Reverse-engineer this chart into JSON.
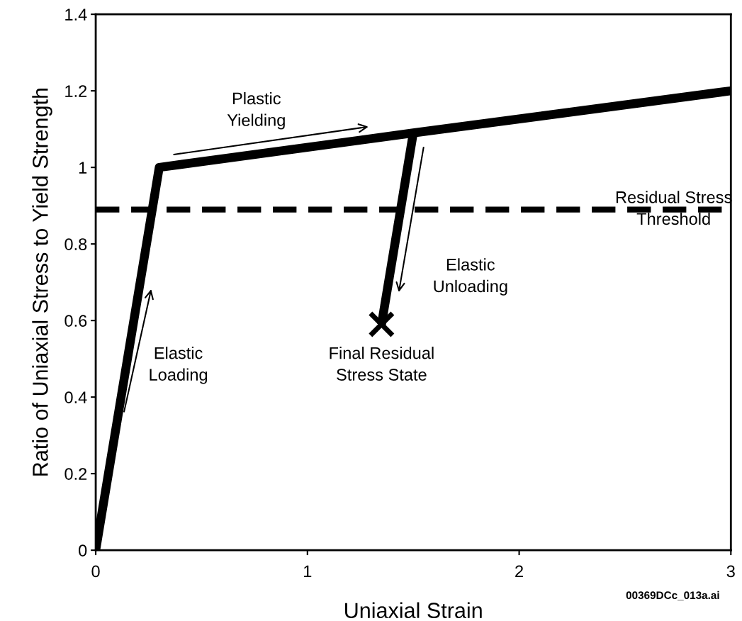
{
  "chart_data": {
    "type": "line",
    "xlabel": "Uniaxial Strain",
    "ylabel": "Ratio of Uniaxial Stress to Yield Strength",
    "series": [
      {
        "color": "#000000",
        "x": [
          0,
          0.3,
          1.5,
          3
        ],
        "values": [
          0,
          1.0,
          1.09,
          1.2
        ]
      },
      {
        "color": "#000000",
        "x": [
          1.5,
          1.35
        ],
        "values": [
          1.09,
          0.59
        ]
      },
      {
        "type": "scatter",
        "marker": "cross",
        "color": "#000000",
        "x": [
          1.35
        ],
        "values": [
          0.59
        ]
      }
    ],
    "xlim": [
      0,
      3
    ],
    "xticks": [
      0,
      1,
      2,
      3
    ],
    "ylim": [
      0,
      1.4
    ],
    "yticks": [
      0,
      0.2,
      0.4,
      0.6,
      0.8,
      1,
      1.2,
      1.4
    ],
    "ref_lines": [
      {
        "axis": "y",
        "value": 0.89,
        "label": "Residual Stress\nThreshold",
        "color": "#000000",
        "line_style": "dashed"
      }
    ],
    "annotations": [
      "Plastic\nYielding",
      "Elastic\nUnloading",
      "Elastic\nLoading",
      "Final Residual\nStress State",
      "00369DCc_013a.ai"
    ],
    "grid": false,
    "legend": false,
    "line_style": "solid"
  }
}
